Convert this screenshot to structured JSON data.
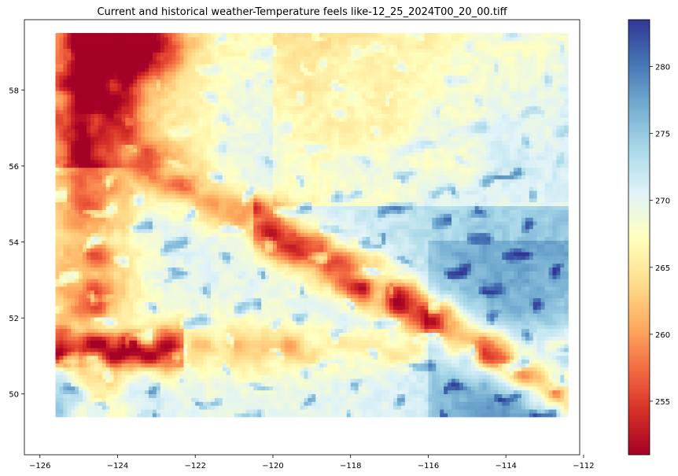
{
  "chart_data": {
    "type": "heatmap",
    "title": "Current and historical weather-Temperature feels like-12_25_2024T00_20_00.tiff",
    "xlabel": "",
    "ylabel": "",
    "xlim": [
      -126.4,
      -112.1
    ],
    "ylim": [
      48.4,
      59.85
    ],
    "x_ticks": [
      -126,
      -124,
      -122,
      -120,
      -118,
      -116,
      -114,
      -112
    ],
    "y_ticks": [
      50,
      52,
      54,
      56,
      58
    ],
    "x_tick_labels": [
      "−126",
      "−124",
      "−122",
      "−120",
      "−118",
      "−116",
      "−114",
      "−112"
    ],
    "y_tick_labels": [
      "50",
      "52",
      "54",
      "56",
      "58"
    ],
    "raster_extent": {
      "lon": [
        -125.6,
        -112.4
      ],
      "lat": [
        49.4,
        59.5
      ]
    },
    "colormap": "RdYlBu",
    "colormap_stops": [
      "#a50026",
      "#d73027",
      "#f46d43",
      "#fdae61",
      "#fee090",
      "#ffffbf",
      "#e0f3f8",
      "#abd9e9",
      "#74add1",
      "#4575b4",
      "#313695"
    ],
    "colorbar": {
      "range": [
        251,
        283.5
      ],
      "ticks": [
        255,
        260,
        265,
        270,
        275,
        280
      ],
      "tick_labels": [
        "255",
        "260",
        "265",
        "270",
        "275",
        "280"
      ]
    },
    "grid": false,
    "description": "Gridded 2D temperature raster; cold ridges (red) run NW-SE through the center and along the western edge; warmer valleys and the southwest coast are blue; the north-east plains are yellow."
  }
}
